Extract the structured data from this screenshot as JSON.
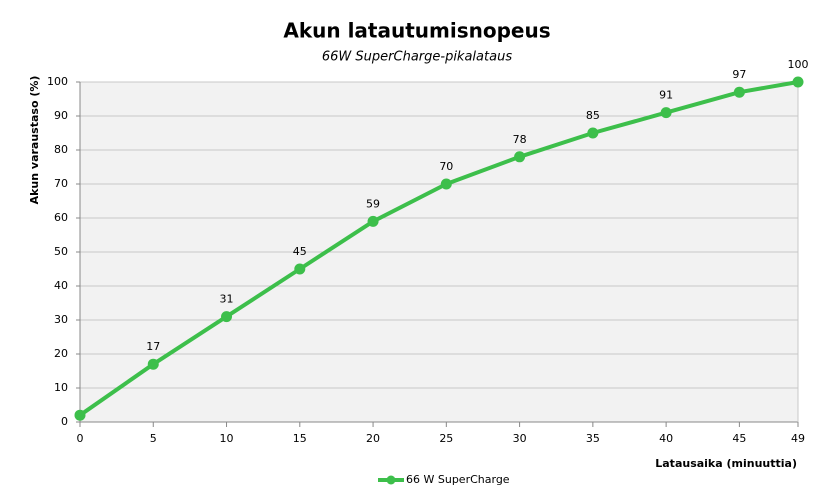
{
  "chart_data": {
    "type": "line",
    "title": "Akun latautumisnopeus",
    "subtitle": "66W SuperCharge-pikalataus",
    "x_label": "Latausaika  (minuuttia)",
    "y_label": "Akun  varaustaso  (%)",
    "x": [
      0,
      5,
      10,
      15,
      20,
      25,
      30,
      35,
      40,
      45,
      49
    ],
    "series": [
      {
        "name": "66 W SuperCharge",
        "color": "#3dbf4b",
        "values": [
          2,
          17,
          31,
          45,
          59,
          70,
          78,
          85,
          91,
          97,
          100
        ],
        "value_labels": [
          null,
          "17",
          "31",
          "45",
          "59",
          "70",
          "78",
          "85",
          "91",
          "97",
          "100"
        ]
      }
    ],
    "xlim": [
      0,
      49
    ],
    "xticks": [
      0,
      5,
      10,
      15,
      20,
      25,
      30,
      35,
      40,
      45,
      49
    ],
    "ylim": [
      0,
      100
    ],
    "yticks": [
      0,
      10,
      20,
      30,
      40,
      50,
      60,
      70,
      80,
      90,
      100
    ],
    "grid": true,
    "legend": "bottom"
  }
}
